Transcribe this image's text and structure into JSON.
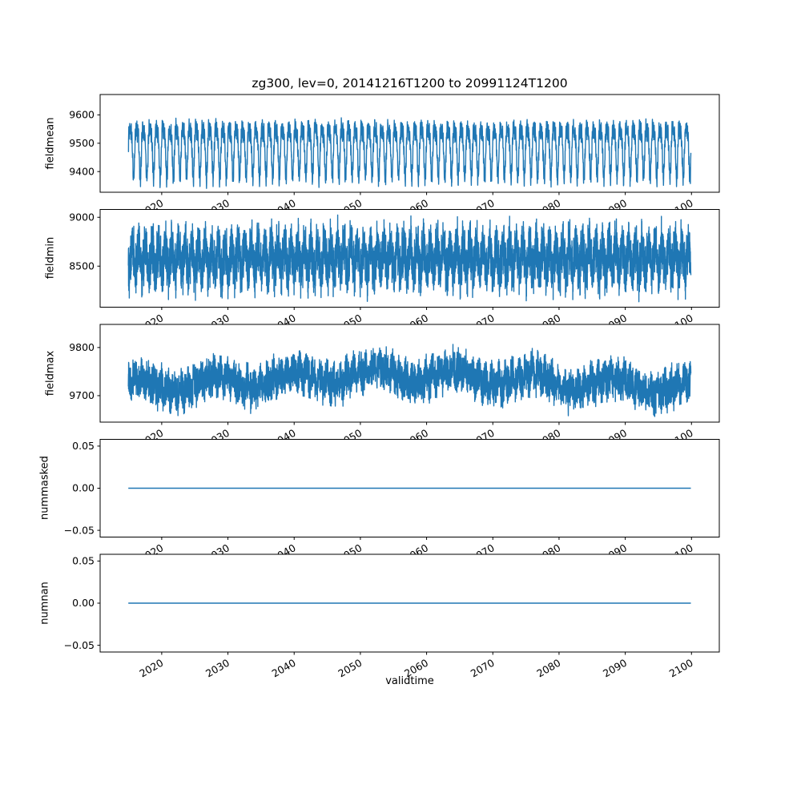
{
  "chart": {
    "title": "zg300, lev=0, 20141216T1200 to 20991124T1200",
    "xlabel": "validtime",
    "line_color": "#1f77b4",
    "background": "#ffffff",
    "x": {
      "lim": [
        2010.7,
        2104.2
      ],
      "data_start": 2014.96,
      "data_end": 2099.9,
      "ticks": [
        2020,
        2030,
        2040,
        2050,
        2060,
        2070,
        2080,
        2090,
        2100
      ],
      "tick_labels": [
        "2020",
        "2030",
        "2040",
        "2050",
        "2060",
        "2070",
        "2080",
        "2090",
        "2100"
      ]
    }
  },
  "chart_data": [
    {
      "type": "line",
      "name": "fieldmean",
      "ylabel": "fieldmean",
      "ylim": [
        9327,
        9672
      ],
      "yticks": [
        9400,
        9500,
        9600
      ],
      "ytick_labels": [
        "9400",
        "9500",
        "9600"
      ],
      "approx_range": [
        9340,
        9660
      ],
      "description": "Dense regular seasonal oscillation of field mean, roughly 9340-9660, stationary from 2015 to 2100",
      "synthesis": {
        "base": 9487,
        "n": 5000,
        "noise": 16,
        "seed": 3,
        "components": [
          {
            "period": 1,
            "amp": 82,
            "phase": 0
          },
          {
            "period": 0.5,
            "amp": 28,
            "phase": 1.3
          },
          {
            "period": 0.123,
            "amp": 22,
            "phase": 0.5
          }
        ]
      }
    },
    {
      "type": "line",
      "name": "fieldmin",
      "ylabel": "fieldmin",
      "ylim": [
        8080,
        9080
      ],
      "yticks": [
        8500,
        9000
      ],
      "ytick_labels": [
        "8500",
        "9000"
      ],
      "approx_range": [
        8120,
        9050
      ],
      "description": "Very dense spiky oscillation of field minimum, bulk between ~8300 and ~8900 with excursions from ~8120 up to ~9050, stationary 2015-2100",
      "synthesis": {
        "base": 8580,
        "n": 5200,
        "noise": 95,
        "seed": 5,
        "components": [
          {
            "period": 1,
            "amp": 140,
            "phase": 4.4
          },
          {
            "period": 0.0384,
            "amp": 170,
            "phase": 0
          },
          {
            "period": 0.27,
            "amp": 60,
            "phase": 2
          }
        ]
      }
    },
    {
      "type": "line",
      "name": "fieldmax",
      "ylabel": "fieldmax",
      "ylim": [
        9645,
        9848
      ],
      "yticks": [
        9700,
        9800
      ],
      "ytick_labels": [
        "9700",
        "9800"
      ],
      "approx_range": [
        9650,
        9840
      ],
      "description": "Noisy field maximum around 9700-9760 with slight rise mid-century and spikes to ~9840 near 2067",
      "synthesis": {
        "base": 9730,
        "n": 5000,
        "noise": 28,
        "seed": 9,
        "components": [
          {
            "period": 90,
            "amp": 12,
            "phase": -1.2
          },
          {
            "period": 12,
            "amp": 14,
            "phase": 1
          },
          {
            "period": 1,
            "amp": 12,
            "phase": 2.2
          },
          {
            "period": 0.09,
            "amp": 16,
            "phase": 0
          }
        ]
      }
    },
    {
      "type": "line",
      "name": "nummasked",
      "ylabel": "nummasked",
      "ylim": [
        -0.058,
        0.058
      ],
      "yticks": [
        -0.05,
        0,
        0.05
      ],
      "ytick_labels": [
        "−0.05",
        "0.00",
        "0.05"
      ],
      "approx_range": [
        0,
        0
      ],
      "description": "Constant zero line for the whole period",
      "synthesis": {
        "base": 0,
        "n": 100,
        "noise": 0,
        "seed": 1,
        "components": []
      }
    },
    {
      "type": "line",
      "name": "numnan",
      "ylabel": "numnan",
      "ylim": [
        -0.058,
        0.058
      ],
      "yticks": [
        -0.05,
        0,
        0.05
      ],
      "ytick_labels": [
        "−0.05",
        "0.00",
        "0.05"
      ],
      "approx_range": [
        0,
        0
      ],
      "description": "Constant zero line for the whole period",
      "synthesis": {
        "base": 0,
        "n": 100,
        "noise": 0,
        "seed": 2,
        "components": []
      }
    }
  ]
}
